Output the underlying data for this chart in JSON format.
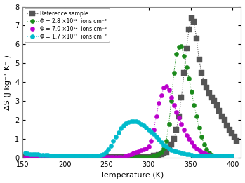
{
  "xlabel": "Temperature (K)",
  "ylabel": "ΔS (J kg⁻¹ K⁻¹)",
  "xlim": [
    150,
    410
  ],
  "ylim": [
    0,
    8
  ],
  "yticks": [
    0,
    1,
    2,
    3,
    4,
    5,
    6,
    7,
    8
  ],
  "xticks": [
    150,
    200,
    250,
    300,
    350,
    400
  ],
  "series": [
    {
      "label": "Reference sample",
      "color": "#555555",
      "marker": "s",
      "markersize": 5.5,
      "linestyle": ":",
      "linewidth": 0.8,
      "data_T": [
        153,
        156,
        159,
        162,
        165,
        168,
        171,
        174,
        177,
        180,
        183,
        186,
        189,
        192,
        195,
        198,
        201,
        204,
        207,
        210,
        213,
        216,
        219,
        222,
        225,
        228,
        231,
        234,
        237,
        240,
        243,
        246,
        249,
        252,
        255,
        258,
        261,
        264,
        267,
        270,
        273,
        276,
        279,
        282,
        285,
        288,
        291,
        294,
        297,
        300,
        303,
        306,
        309,
        312,
        315,
        318,
        321,
        324,
        327,
        330,
        333,
        336,
        339,
        342,
        345,
        348,
        351,
        354,
        357,
        360,
        363,
        366,
        369,
        372,
        375,
        378,
        381,
        384,
        387,
        390,
        393,
        396,
        399,
        402,
        405
      ],
      "data_S": [
        0.05,
        0.05,
        0.05,
        0.05,
        0.05,
        0.05,
        0.05,
        0.05,
        0.05,
        0.05,
        0.05,
        0.05,
        0.05,
        0.05,
        0.05,
        0.05,
        0.05,
        0.05,
        0.05,
        0.05,
        0.05,
        0.05,
        0.05,
        0.05,
        0.05,
        0.05,
        0.05,
        0.05,
        0.05,
        0.05,
        0.05,
        0.05,
        0.05,
        0.05,
        0.05,
        0.05,
        0.05,
        0.05,
        0.05,
        0.05,
        0.05,
        0.05,
        0.05,
        0.05,
        0.05,
        0.05,
        0.05,
        0.05,
        0.05,
        0.05,
        0.05,
        0.1,
        0.1,
        0.15,
        0.2,
        0.25,
        0.3,
        0.5,
        0.7,
        1.0,
        1.5,
        2.2,
        3.2,
        4.5,
        5.8,
        6.8,
        7.4,
        7.2,
        6.3,
        5.2,
        4.5,
        4.0,
        3.7,
        3.4,
        3.2,
        3.0,
        2.8,
        2.5,
        2.2,
        2.0,
        1.7,
        1.5,
        1.3,
        1.1,
        0.9
      ]
    },
    {
      "label": "Φ = 2.8 ×10¹²  ions cm⁻²",
      "color": "#1a8a1a",
      "marker": "o",
      "markersize": 4.5,
      "linestyle": ":",
      "linewidth": 0.7,
      "data_T": [
        153,
        156,
        159,
        162,
        165,
        168,
        171,
        174,
        177,
        180,
        183,
        186,
        189,
        192,
        195,
        198,
        201,
        204,
        207,
        210,
        213,
        216,
        219,
        222,
        225,
        228,
        231,
        234,
        237,
        240,
        243,
        246,
        249,
        252,
        255,
        258,
        261,
        264,
        267,
        270,
        273,
        276,
        279,
        282,
        285,
        288,
        291,
        294,
        297,
        300,
        303,
        306,
        309,
        312,
        315,
        318,
        321,
        324,
        327,
        330,
        333,
        336,
        339,
        342,
        345,
        348,
        351,
        354,
        357,
        360,
        363,
        366,
        369,
        372,
        375,
        378,
        381,
        384,
        387,
        390,
        393,
        396,
        399
      ],
      "data_S": [
        0.05,
        0.05,
        0.05,
        0.05,
        0.05,
        0.05,
        0.05,
        0.05,
        0.05,
        0.05,
        0.05,
        0.05,
        0.05,
        0.05,
        0.05,
        0.05,
        0.05,
        0.05,
        0.05,
        0.05,
        0.05,
        0.05,
        0.05,
        0.05,
        0.05,
        0.05,
        0.05,
        0.05,
        0.05,
        0.05,
        0.05,
        0.05,
        0.05,
        0.05,
        0.05,
        0.05,
        0.05,
        0.05,
        0.05,
        0.05,
        0.05,
        0.05,
        0.05,
        0.05,
        0.05,
        0.05,
        0.05,
        0.05,
        0.05,
        0.05,
        0.05,
        0.1,
        0.15,
        0.2,
        0.3,
        0.5,
        0.9,
        1.8,
        3.0,
        4.5,
        5.5,
        5.85,
        5.9,
        5.4,
        4.8,
        4.2,
        3.5,
        2.8,
        2.2,
        1.6,
        1.1,
        0.7,
        0.45,
        0.25,
        0.15,
        0.1,
        0.1,
        0.1,
        0.1,
        0.1,
        0.1,
        0.1,
        0.1
      ]
    },
    {
      "label": "Φ = 7.0 ×10¹²  ions cm⁻²",
      "color": "#bb00cc",
      "marker": "o",
      "markersize": 4.5,
      "linestyle": ":",
      "linewidth": 0.7,
      "data_T": [
        153,
        156,
        159,
        162,
        165,
        168,
        171,
        174,
        177,
        180,
        183,
        186,
        189,
        192,
        195,
        198,
        201,
        204,
        207,
        210,
        213,
        216,
        219,
        222,
        225,
        228,
        231,
        234,
        237,
        240,
        243,
        246,
        249,
        252,
        255,
        258,
        261,
        264,
        267,
        270,
        273,
        276,
        279,
        282,
        285,
        288,
        291,
        294,
        297,
        300,
        303,
        306,
        309,
        312,
        315,
        318,
        321,
        324,
        327,
        330,
        333,
        336,
        339,
        342,
        345,
        348,
        351,
        354,
        357,
        360,
        363,
        366,
        369,
        372,
        375,
        378,
        381,
        384,
        387,
        390,
        393,
        396,
        399
      ],
      "data_S": [
        0.05,
        0.05,
        0.05,
        0.05,
        0.05,
        0.05,
        0.05,
        0.05,
        0.05,
        0.05,
        0.05,
        0.05,
        0.05,
        0.05,
        0.05,
        0.05,
        0.05,
        0.05,
        0.05,
        0.05,
        0.05,
        0.05,
        0.05,
        0.05,
        0.05,
        0.05,
        0.05,
        0.05,
        0.05,
        0.05,
        0.05,
        0.05,
        0.05,
        0.05,
        0.05,
        0.05,
        0.05,
        0.05,
        0.05,
        0.05,
        0.1,
        0.15,
        0.2,
        0.25,
        0.3,
        0.35,
        0.4,
        0.45,
        0.5,
        0.6,
        0.9,
        1.5,
        2.2,
        2.9,
        3.3,
        3.7,
        3.8,
        3.6,
        3.2,
        2.8,
        2.4,
        2.1,
        1.8,
        1.5,
        1.2,
        1.0,
        0.8,
        0.65,
        0.5,
        0.4,
        0.3,
        0.25,
        0.2,
        0.15,
        0.1,
        0.1,
        0.1,
        0.1,
        0.1,
        0.1,
        0.1,
        0.1,
        0.1
      ]
    },
    {
      "label": "Φ = 1.7 ×10¹³  ions cm⁻²",
      "color": "#00bbcc",
      "marker": "o",
      "markersize": 4.5,
      "linestyle": ":",
      "linewidth": 0.7,
      "data_T": [
        153,
        156,
        159,
        162,
        165,
        168,
        171,
        174,
        177,
        180,
        183,
        186,
        189,
        192,
        195,
        198,
        201,
        204,
        207,
        210,
        213,
        216,
        219,
        222,
        225,
        228,
        231,
        234,
        237,
        240,
        243,
        246,
        249,
        252,
        255,
        258,
        261,
        264,
        267,
        270,
        273,
        276,
        279,
        282,
        285,
        288,
        291,
        294,
        297,
        300,
        303,
        306,
        309,
        312,
        315,
        318,
        321,
        324,
        327,
        330,
        333,
        336,
        339,
        342,
        345,
        348,
        351,
        354,
        357,
        360,
        363,
        366,
        369,
        372,
        375,
        378,
        381,
        384,
        387,
        390,
        393,
        396,
        399
      ],
      "data_S": [
        0.25,
        0.22,
        0.2,
        0.18,
        0.18,
        0.17,
        0.15,
        0.15,
        0.14,
        0.14,
        0.13,
        0.12,
        0.12,
        0.11,
        0.1,
        0.1,
        0.1,
        0.1,
        0.1,
        0.1,
        0.1,
        0.1,
        0.1,
        0.1,
        0.1,
        0.1,
        0.1,
        0.1,
        0.1,
        0.12,
        0.15,
        0.2,
        0.3,
        0.45,
        0.65,
        0.9,
        1.1,
        1.35,
        1.55,
        1.7,
        1.82,
        1.9,
        1.95,
        1.95,
        1.93,
        1.88,
        1.8,
        1.7,
        1.6,
        1.5,
        1.38,
        1.25,
        1.1,
        0.95,
        0.8,
        0.68,
        0.58,
        0.5,
        0.42,
        0.38,
        0.32,
        0.28,
        0.25,
        0.22,
        0.2,
        0.18,
        0.15,
        0.13,
        0.12,
        0.1,
        0.1,
        0.1,
        0.1,
        0.1,
        0.1,
        0.1,
        0.1,
        0.1,
        0.1,
        0.1,
        0.1,
        0.1,
        0.1
      ]
    }
  ],
  "legend_labels": [
    "Reference sample",
    "Φ = 2.8 ×10¹²  ions cm⁻²",
    "Φ = 7.0 ×10¹²  ions cm⁻²",
    "Φ = 1.7 ×10¹³  ions cm⁻²"
  ]
}
